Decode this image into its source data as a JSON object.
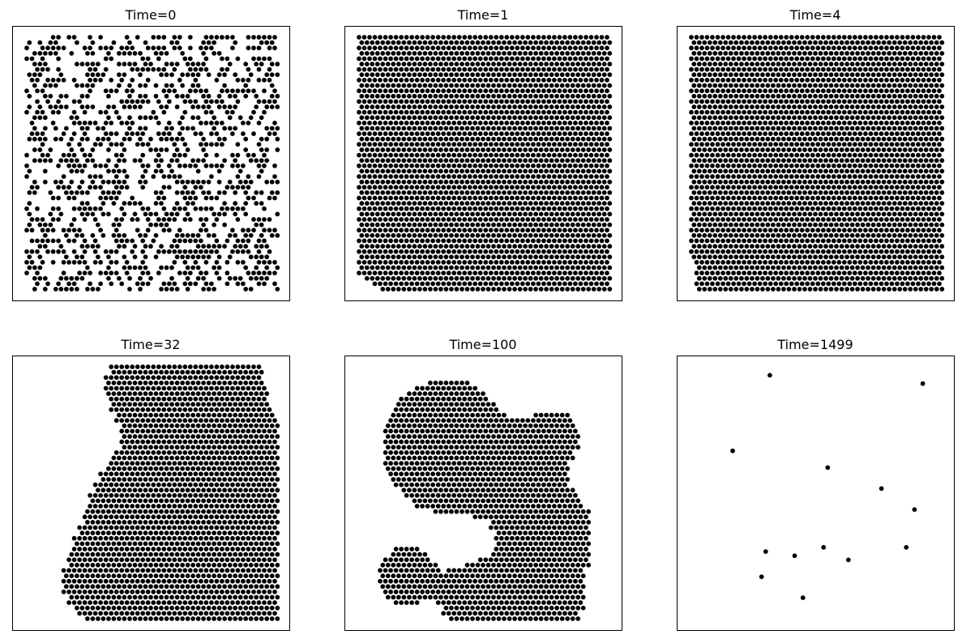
{
  "chart_data": [
    {
      "type": "scatter",
      "title": "Time=0",
      "grid": false,
      "marker_color": "#000000",
      "pattern": "random",
      "density": 0.5
    },
    {
      "type": "scatter",
      "title": "Time=1",
      "grid": false,
      "marker_color": "#000000",
      "pattern": "clusters",
      "density": 0.5
    },
    {
      "type": "scatter",
      "title": "Time=4",
      "grid": false,
      "marker_color": "#000000",
      "pattern": "clusters",
      "density": 0.45
    },
    {
      "type": "scatter",
      "title": "Time=32",
      "grid": false,
      "marker_color": "#000000",
      "pattern": "clusters",
      "density": 0.33
    },
    {
      "type": "scatter",
      "title": "Time=100",
      "grid": false,
      "marker_color": "#000000",
      "pattern": "clusters",
      "density": 0.28
    },
    {
      "type": "scatter",
      "title": "Time=1499",
      "grid": false,
      "marker_color": "#000000",
      "pattern": "sparse",
      "x": [
        19,
        56,
        10,
        33,
        46,
        54,
        18,
        25,
        32,
        38,
        52,
        17,
        27
      ],
      "y": [
        58,
        56,
        40,
        36,
        31,
        26,
        16,
        15,
        17,
        14,
        17,
        10,
        5
      ]
    }
  ]
}
